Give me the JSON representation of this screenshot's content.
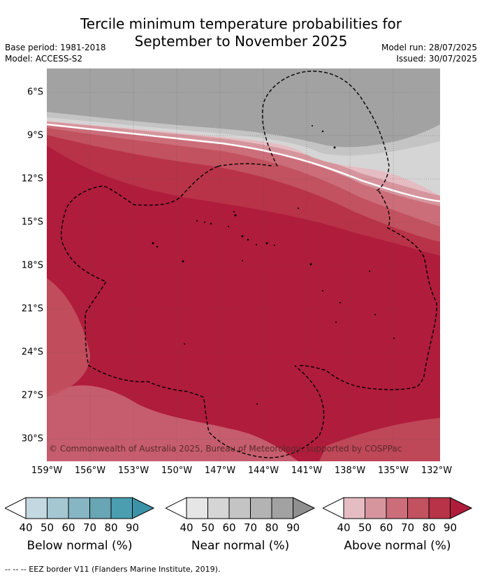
{
  "title_line1": "Tercile minimum temperature probabilities for",
  "title_line2": "September to November 2025",
  "base_period": "Base period: 1981-2018",
  "model": "Model: ACCESS-S2",
  "model_run": "Model run: 28/07/2025",
  "issued": "Issued: 30/07/2025",
  "copyright": "© Commonwealth of Australia 2025, Bureau of Meteorology, supported by COSPPac",
  "lat_labels": [
    "6°S",
    "9°S",
    "12°S",
    "15°S",
    "18°S",
    "21°S",
    "24°S",
    "27°S",
    "30°S"
  ],
  "lon_labels": [
    "159°W",
    "156°W",
    "153°W",
    "150°W",
    "147°W",
    "144°W",
    "141°W",
    "138°W",
    "135°W",
    "132°W"
  ],
  "legends": [
    {
      "title": "Below normal (%)",
      "ticks": [
        "40",
        "50",
        "60",
        "70",
        "80",
        "90"
      ],
      "colors": [
        "#c3d8e0",
        "#a4c7d1",
        "#86b6c3",
        "#68a5b5",
        "#4a9eb0",
        "#3c93a8"
      ]
    },
    {
      "title": "Near normal (%)",
      "ticks": [
        "40",
        "50",
        "60",
        "70",
        "80",
        "90"
      ],
      "colors": [
        "#e6e6e6",
        "#d5d5d5",
        "#c4c4c4",
        "#b3b3b3",
        "#a2a2a2",
        "#8f8f8f"
      ]
    },
    {
      "title": "Above normal (%)",
      "ticks": [
        "40",
        "50",
        "60",
        "70",
        "80",
        "90"
      ],
      "colors": [
        "#e5bcc2",
        "#d6959d",
        "#cc6e7a",
        "#c2525f",
        "#b83248",
        "#b01c3c"
      ]
    }
  ],
  "footnote": "-- -- -- EEZ border V11 (Flanders Marine Institute, 2019)."
}
